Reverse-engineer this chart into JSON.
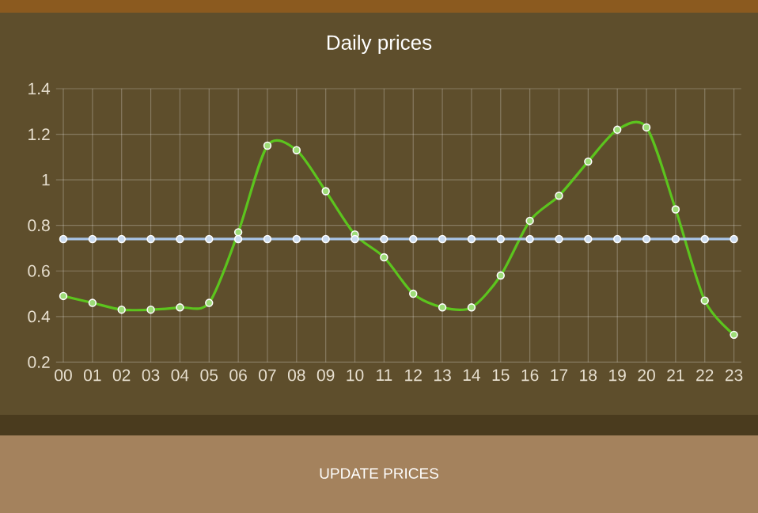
{
  "chart_data": {
    "type": "line",
    "title": "Daily prices",
    "categories": [
      "00",
      "01",
      "02",
      "03",
      "04",
      "05",
      "06",
      "07",
      "08",
      "09",
      "10",
      "11",
      "12",
      "13",
      "14",
      "15",
      "16",
      "17",
      "18",
      "19",
      "20",
      "21",
      "22",
      "23"
    ],
    "series": [
      {
        "color": "#5cc41e",
        "values": [
          0.49,
          0.46,
          0.43,
          0.43,
          0.44,
          0.46,
          0.77,
          1.15,
          1.13,
          0.95,
          0.76,
          0.66,
          0.5,
          0.44,
          0.44,
          0.58,
          0.82,
          0.93,
          1.08,
          1.22,
          1.23,
          0.87,
          0.47,
          0.32
        ]
      },
      {
        "color": "#a8c4e6",
        "values": [
          0.74,
          0.74,
          0.74,
          0.74,
          0.74,
          0.74,
          0.74,
          0.74,
          0.74,
          0.74,
          0.74,
          0.74,
          0.74,
          0.74,
          0.74,
          0.74,
          0.74,
          0.74,
          0.74,
          0.74,
          0.74,
          0.74,
          0.74,
          0.74
        ]
      }
    ],
    "ylim": [
      0.2,
      1.4
    ],
    "yticks": [
      0.2,
      0.4,
      0.6,
      0.8,
      1,
      1.2,
      1.4
    ],
    "grid": true,
    "marker": "circle",
    "line_style": "solid",
    "annotations": [
      "UPDATE PRICES"
    ]
  }
}
